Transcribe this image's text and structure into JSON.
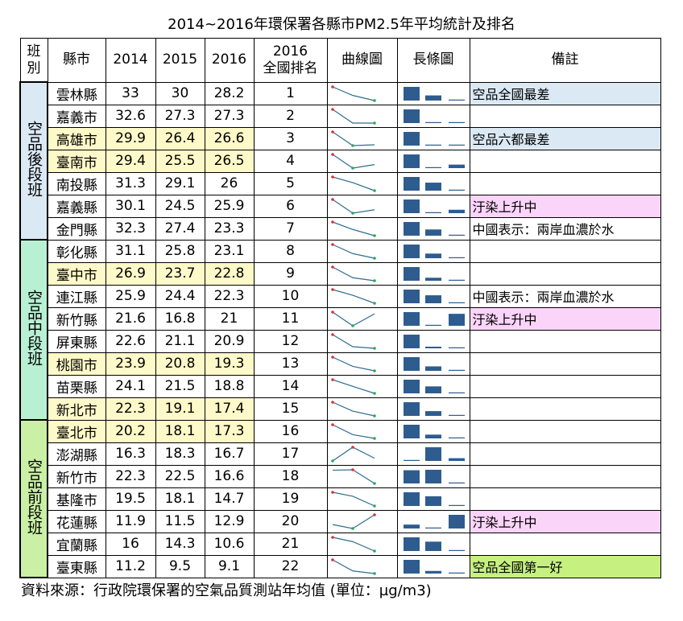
{
  "title": "2014~2016年環保署各縣市PM2.5年平均統計及排名",
  "headers": {
    "group": [
      "班",
      "別"
    ],
    "county": "縣市",
    "y2014": "2014",
    "y2015": "2015",
    "y2016": "2016",
    "rank": [
      "2016",
      "全國排名"
    ],
    "sparkline": "曲線圖",
    "bar": "長條圖",
    "remark": "備註"
  },
  "groups": [
    {
      "label": "空品後段班",
      "rows": 7,
      "color": "#dbe9f5"
    },
    {
      "label": "空品中段班",
      "rows": 8,
      "color": "#b8f0d4"
    },
    {
      "label": "空品前段班",
      "rows": 7,
      "color": "#c9f0a5"
    }
  ],
  "colors": {
    "highlight_row": "#fef9c8",
    "remark_blue": "#dbe9f5",
    "remark_pink": "#fbd4fa",
    "remark_green": "#c6f07f",
    "bar": "#2e5c8f",
    "line": "#2e6e8e",
    "marker_high": "#e03030",
    "marker_low": "#2aa860"
  },
  "chart_data": {
    "type": "table",
    "columns": [
      "縣市",
      "2014",
      "2015",
      "2016",
      "2016 全國排名",
      "備註"
    ],
    "rows": [
      {
        "county": "雲林縣",
        "v2014": "33",
        "v2015": "30",
        "v2016": "28.2",
        "rank": "1",
        "remark": "空品全國最差",
        "remark_bg": "blue",
        "highlight": false
      },
      {
        "county": "嘉義市",
        "v2014": "32.6",
        "v2015": "27.3",
        "v2016": "27.3",
        "rank": "2",
        "remark": "",
        "remark_bg": "",
        "highlight": false
      },
      {
        "county": "高雄市",
        "v2014": "29.9",
        "v2015": "26.4",
        "v2016": "26.6",
        "rank": "3",
        "remark": "空品六都最差",
        "remark_bg": "blue",
        "highlight": true
      },
      {
        "county": "臺南市",
        "v2014": "29.4",
        "v2015": "25.5",
        "v2016": "26.5",
        "rank": "4",
        "remark": "",
        "remark_bg": "",
        "highlight": true
      },
      {
        "county": "南投縣",
        "v2014": "31.3",
        "v2015": "29.1",
        "v2016": "26",
        "rank": "5",
        "remark": "",
        "remark_bg": "",
        "highlight": false
      },
      {
        "county": "嘉義縣",
        "v2014": "30.1",
        "v2015": "24.5",
        "v2016": "25.9",
        "rank": "6",
        "remark": "汙染上升中",
        "remark_bg": "pink",
        "highlight": false
      },
      {
        "county": "金門縣",
        "v2014": "32.3",
        "v2015": "27.4",
        "v2016": "23.3",
        "rank": "7",
        "remark": "中國表示：兩岸血濃於水",
        "remark_bg": "",
        "highlight": false
      },
      {
        "county": "彰化縣",
        "v2014": "31.1",
        "v2015": "25.8",
        "v2016": "23.1",
        "rank": "8",
        "remark": "",
        "remark_bg": "",
        "highlight": false
      },
      {
        "county": "臺中市",
        "v2014": "26.9",
        "v2015": "23.7",
        "v2016": "22.8",
        "rank": "9",
        "remark": "",
        "remark_bg": "",
        "highlight": true
      },
      {
        "county": "連江縣",
        "v2014": "25.9",
        "v2015": "24.4",
        "v2016": "22.3",
        "rank": "10",
        "remark": "中國表示：兩岸血濃於水",
        "remark_bg": "",
        "highlight": false
      },
      {
        "county": "新竹縣",
        "v2014": "21.6",
        "v2015": "16.8",
        "v2016": "21",
        "rank": "11",
        "remark": "汙染上升中",
        "remark_bg": "pink",
        "highlight": false
      },
      {
        "county": "屏東縣",
        "v2014": "22.6",
        "v2015": "21.1",
        "v2016": "20.9",
        "rank": "12",
        "remark": "",
        "remark_bg": "",
        "highlight": false
      },
      {
        "county": "桃園市",
        "v2014": "23.9",
        "v2015": "20.8",
        "v2016": "19.3",
        "rank": "13",
        "remark": "",
        "remark_bg": "",
        "highlight": true
      },
      {
        "county": "苗栗縣",
        "v2014": "24.1",
        "v2015": "21.5",
        "v2016": "18.8",
        "rank": "14",
        "remark": "",
        "remark_bg": "",
        "highlight": false
      },
      {
        "county": "新北市",
        "v2014": "22.3",
        "v2015": "19.1",
        "v2016": "17.4",
        "rank": "15",
        "remark": "",
        "remark_bg": "",
        "highlight": true
      },
      {
        "county": "臺北市",
        "v2014": "20.2",
        "v2015": "18.1",
        "v2016": "17.3",
        "rank": "16",
        "remark": "",
        "remark_bg": "",
        "highlight": true
      },
      {
        "county": "澎湖縣",
        "v2014": "16.3",
        "v2015": "18.3",
        "v2016": "16.7",
        "rank": "17",
        "remark": "",
        "remark_bg": "",
        "highlight": false
      },
      {
        "county": "新竹市",
        "v2014": "22.3",
        "v2015": "22.5",
        "v2016": "16.6",
        "rank": "18",
        "remark": "",
        "remark_bg": "",
        "highlight": false
      },
      {
        "county": "基隆市",
        "v2014": "19.5",
        "v2015": "18.1",
        "v2016": "14.7",
        "rank": "19",
        "remark": "",
        "remark_bg": "",
        "highlight": false
      },
      {
        "county": "花蓮縣",
        "v2014": "11.9",
        "v2015": "11.5",
        "v2016": "12.9",
        "rank": "20",
        "remark": "汙染上升中",
        "remark_bg": "pink",
        "highlight": false
      },
      {
        "county": "宜蘭縣",
        "v2014": "16",
        "v2015": "14.3",
        "v2016": "10.6",
        "rank": "21",
        "remark": "",
        "remark_bg": "",
        "highlight": false
      },
      {
        "county": "臺東縣",
        "v2014": "11.2",
        "v2015": "9.5",
        "v2016": "9.1",
        "rank": "22",
        "remark": "空品全國第一好",
        "remark_bg": "green",
        "highlight": false
      }
    ]
  },
  "source": "資料來源：行政院環保署的空氣品質測站年均值 (單位：µg/m3)"
}
